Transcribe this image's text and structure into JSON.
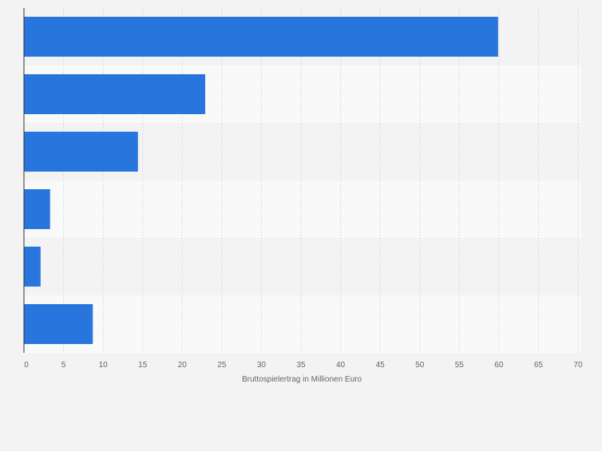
{
  "chart_data": {
    "type": "bar",
    "orientation": "horizontal",
    "categories": [
      "",
      "",
      "",
      "",
      "",
      ""
    ],
    "values": [
      59.9,
      22.9,
      14.4,
      3.3,
      2.1,
      8.7
    ],
    "title": "",
    "xlabel": "Bruttospielertrag in Millionen Euro",
    "ylabel": "",
    "xlim": [
      0,
      70
    ],
    "xticks": [
      0,
      5,
      10,
      15,
      20,
      25,
      30,
      35,
      40,
      45,
      50,
      55,
      60,
      65,
      70
    ],
    "grid": true,
    "legend": "none",
    "colors": {
      "bar": "#2876dd",
      "band_dark": "#f3f3f3",
      "band_light": "#f9f9f9",
      "grid": "#d9d9d9",
      "axis": "#333333",
      "tick_text": "#666666"
    }
  }
}
